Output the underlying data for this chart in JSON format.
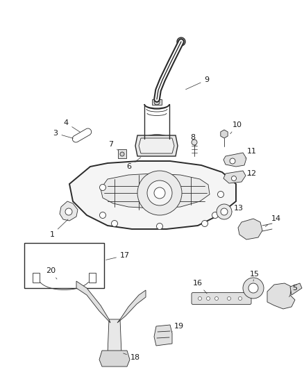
{
  "background_color": "#ffffff",
  "line_color": "#2a2a2a",
  "label_color": "#1a1a1a",
  "figsize": [
    4.39,
    5.33
  ],
  "dpi": 100,
  "lw_main": 1.0,
  "lw_thin": 0.6,
  "lw_thick": 1.4
}
